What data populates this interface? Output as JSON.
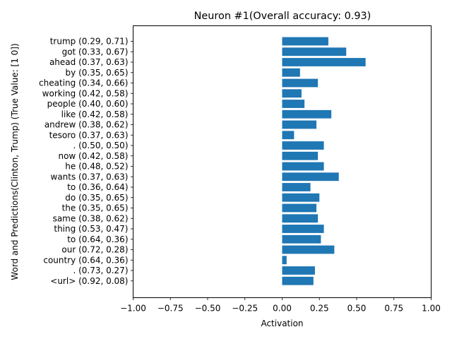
{
  "chart_data": {
    "type": "bar",
    "orientation": "horizontal",
    "title": "Neuron #1(Overall accuracy: 0.93)",
    "xlabel": "Activation",
    "ylabel": "Word and Predictions(Clinton, Trump) (True Value: [1 0])",
    "xlim": [
      -1.0,
      1.0
    ],
    "xticks": [
      "−1.00",
      "−0.75",
      "−0.50",
      "−0.25",
      "0.00",
      "0.25",
      "0.50",
      "0.75",
      "1.00"
    ],
    "grid": false,
    "bar_color": "#1f77b4",
    "categories": [
      "trump (0.29, 0.71)",
      "got (0.33, 0.67)",
      "ahead (0.37, 0.63)",
      "by (0.35, 0.65)",
      "cheating (0.34, 0.66)",
      "working (0.42, 0.58)",
      "people (0.40, 0.60)",
      "like (0.42, 0.58)",
      "andrew (0.38, 0.62)",
      "tesoro (0.37, 0.63)",
      ". (0.50, 0.50)",
      "now (0.42, 0.58)",
      "he (0.48, 0.52)",
      "wants (0.37, 0.63)",
      "to (0.36, 0.64)",
      "do (0.35, 0.65)",
      "the (0.35, 0.65)",
      "same (0.38, 0.62)",
      "thing (0.53, 0.47)",
      "to (0.64, 0.36)",
      "our (0.72, 0.28)",
      "country (0.64, 0.36)",
      ". (0.73, 0.27)",
      "<url> (0.92, 0.08)"
    ],
    "values": [
      0.31,
      0.43,
      0.56,
      0.12,
      0.24,
      0.13,
      0.15,
      0.33,
      0.23,
      0.08,
      0.28,
      0.24,
      0.28,
      0.38,
      0.19,
      0.25,
      0.23,
      0.24,
      0.28,
      0.26,
      0.35,
      0.03,
      0.22,
      0.21
    ]
  }
}
